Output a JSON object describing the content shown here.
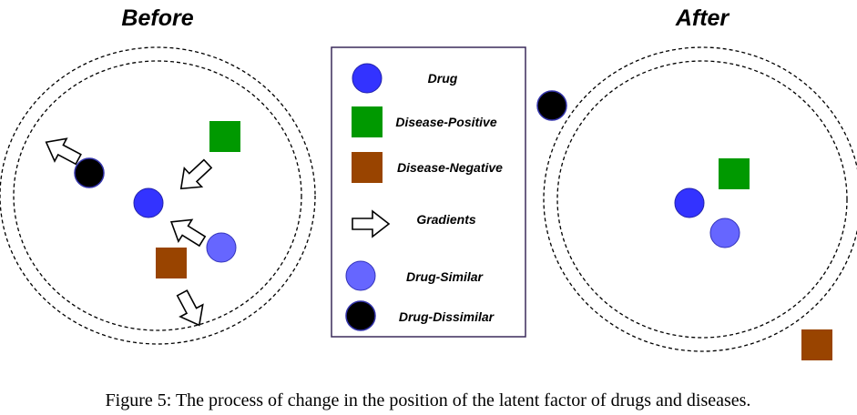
{
  "panels": {
    "before_title": "Before",
    "after_title": "After"
  },
  "legend": {
    "items": [
      {
        "key": "drug",
        "label": "Drug",
        "shape": "circle",
        "color": "#3333ff"
      },
      {
        "key": "disease_positive",
        "label": "Disease-Positive",
        "shape": "square",
        "color": "#009900"
      },
      {
        "key": "disease_negative",
        "label": "Disease-Negative",
        "shape": "square",
        "color": "#994400"
      },
      {
        "key": "gradients",
        "label": "Gradients",
        "shape": "arrow",
        "color": "#ffffff"
      },
      {
        "key": "drug_similar",
        "label": "Drug-Similar",
        "shape": "circle",
        "color": "#6666ff"
      },
      {
        "key": "drug_dissimilar",
        "label": "Drug-Dissimilar",
        "shape": "circle",
        "color": "#000000"
      }
    ]
  },
  "caption": "Figure 5: The process of change in the position of the latent factor of drugs and diseases."
}
